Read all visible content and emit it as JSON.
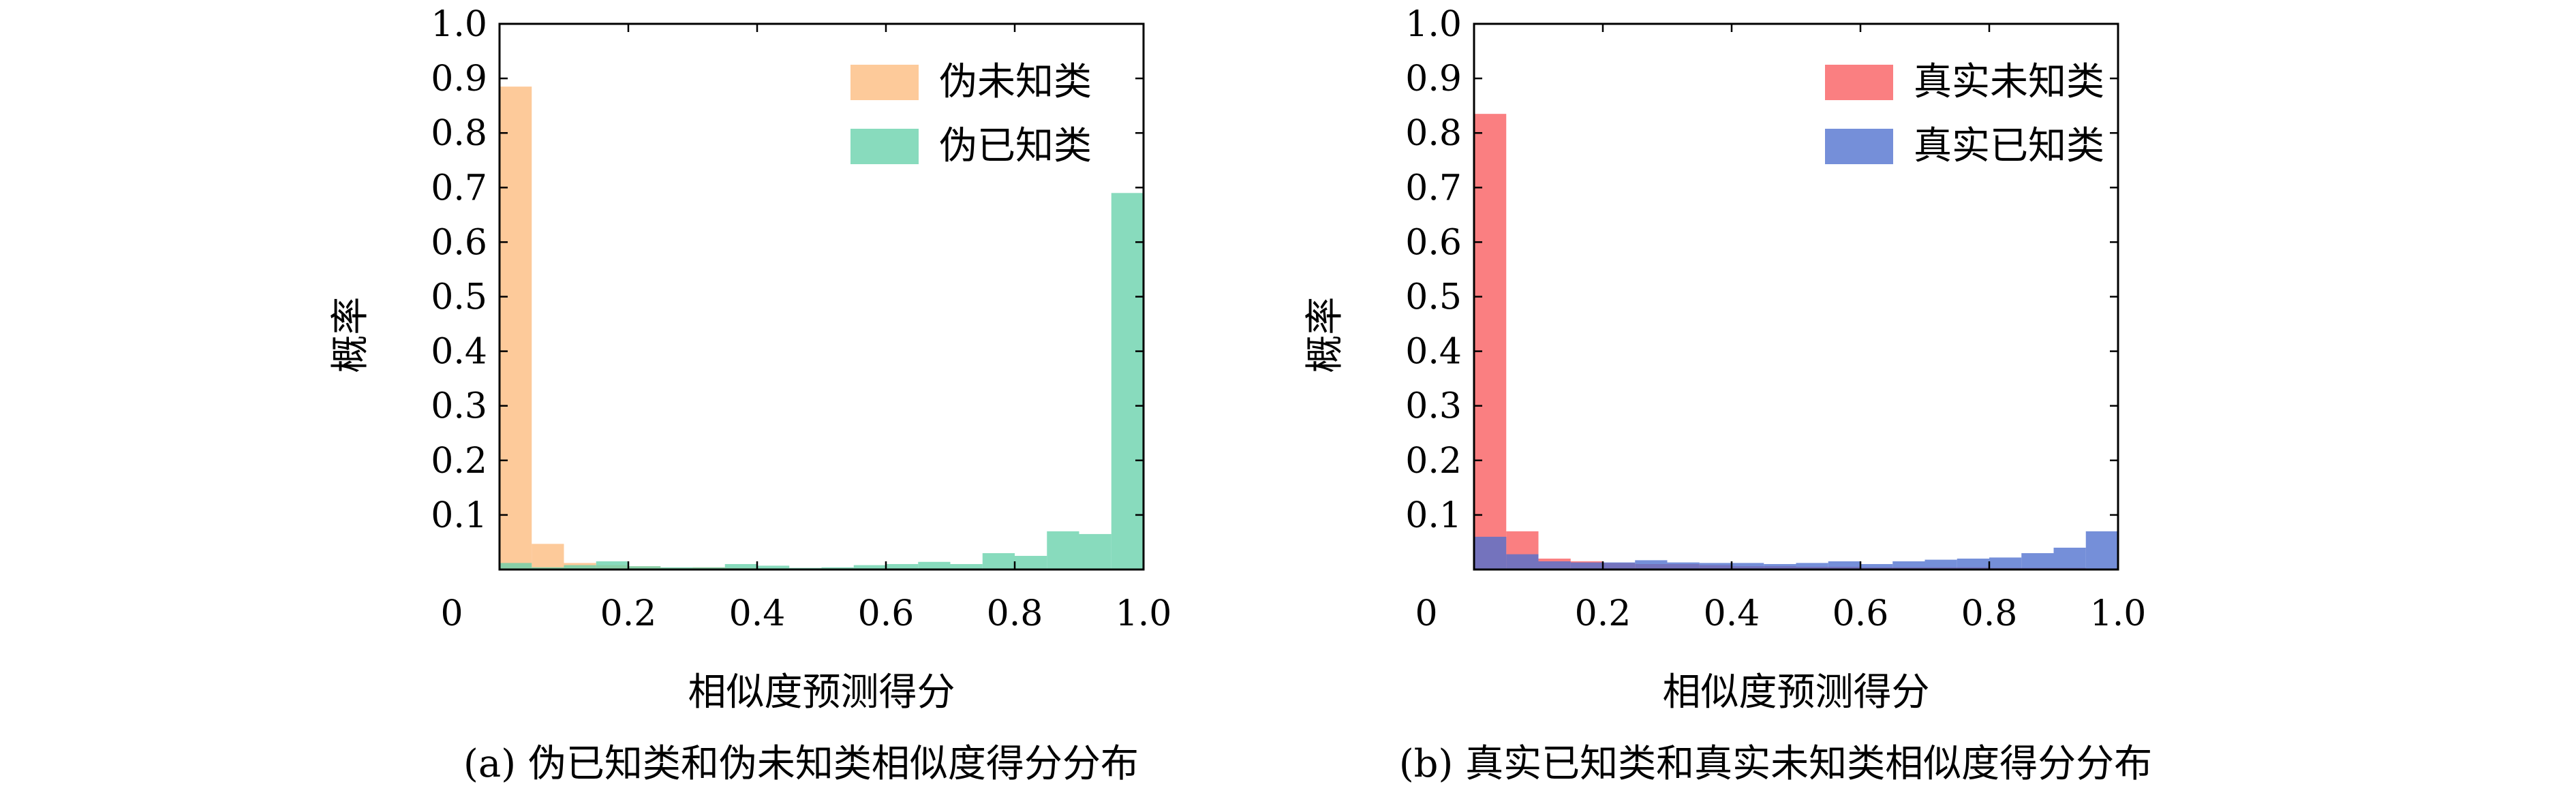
{
  "chart_data": [
    {
      "type": "bar",
      "panel": "a",
      "caption": "(a) 伪已知类和伪未知类相似度得分分布",
      "xlabel": "相似度预测得分",
      "ylabel": "概率",
      "xlim": [
        0,
        1.0
      ],
      "ylim": [
        0,
        1.0
      ],
      "bin_edges": [
        0,
        0.05,
        0.1,
        0.15,
        0.2,
        0.25,
        0.3,
        0.35,
        0.4,
        0.45,
        0.5,
        0.55,
        0.6,
        0.65,
        0.7,
        0.75,
        0.8,
        0.85,
        0.9,
        0.95,
        1.0
      ],
      "x_ticks": [
        "0",
        "0.2",
        "0.4",
        "0.6",
        "0.8",
        "1.0"
      ],
      "y_ticks": [
        "0.1",
        "0.2",
        "0.3",
        "0.4",
        "0.5",
        "0.6",
        "0.7",
        "0.8",
        "0.9",
        "1.0"
      ],
      "legend_position": "top-right",
      "series": [
        {
          "name": "伪未知类",
          "color": "#FDBB7E",
          "values": [
            0.885,
            0.047,
            0.012,
            0.008,
            0.006,
            0.003,
            0.004,
            0.003,
            0.002,
            0.002,
            0.002,
            0.002,
            0.002,
            0.002,
            0.002,
            0.002,
            0.002,
            0.002,
            0.002,
            0.001
          ]
        },
        {
          "name": "伪已知类",
          "color": "#66D1AA",
          "values": [
            0.012,
            0.004,
            0.008,
            0.015,
            0.006,
            0.004,
            0.004,
            0.01,
            0.007,
            0.003,
            0.004,
            0.008,
            0.01,
            0.014,
            0.01,
            0.03,
            0.025,
            0.07,
            0.065,
            0.69
          ]
        }
      ]
    },
    {
      "type": "bar",
      "panel": "b",
      "caption": "(b) 真实已知类和真实未知类相似度得分分布",
      "xlabel": "相似度预测得分",
      "ylabel": "概率",
      "xlim": [
        0,
        1.0
      ],
      "ylim": [
        0,
        1.0
      ],
      "bin_edges": [
        0,
        0.05,
        0.1,
        0.15,
        0.2,
        0.25,
        0.3,
        0.35,
        0.4,
        0.45,
        0.5,
        0.55,
        0.6,
        0.65,
        0.7,
        0.75,
        0.8,
        0.85,
        0.9,
        0.95,
        1.0
      ],
      "x_ticks": [
        "0",
        "0.2",
        "0.4",
        "0.6",
        "0.8",
        "1.0"
      ],
      "y_ticks": [
        "0.1",
        "0.2",
        "0.3",
        "0.4",
        "0.5",
        "0.6",
        "0.7",
        "0.8",
        "0.9",
        "1.0"
      ],
      "legend_position": "top-right",
      "series": [
        {
          "name": "真实未知类",
          "color": "#F95B5E",
          "values": [
            0.835,
            0.07,
            0.02,
            0.015,
            0.012,
            0.01,
            0.01,
            0.008,
            0.006,
            0.006,
            0.005,
            0.005,
            0.004,
            0.004,
            0.004,
            0.004,
            0.003,
            0.003,
            0.003,
            0.002
          ]
        },
        {
          "name": "真实已知类",
          "color": "#4E6FCE",
          "values": [
            0.06,
            0.028,
            0.015,
            0.013,
            0.013,
            0.017,
            0.013,
            0.012,
            0.012,
            0.01,
            0.012,
            0.015,
            0.01,
            0.015,
            0.018,
            0.02,
            0.022,
            0.03,
            0.04,
            0.07
          ]
        }
      ]
    }
  ]
}
